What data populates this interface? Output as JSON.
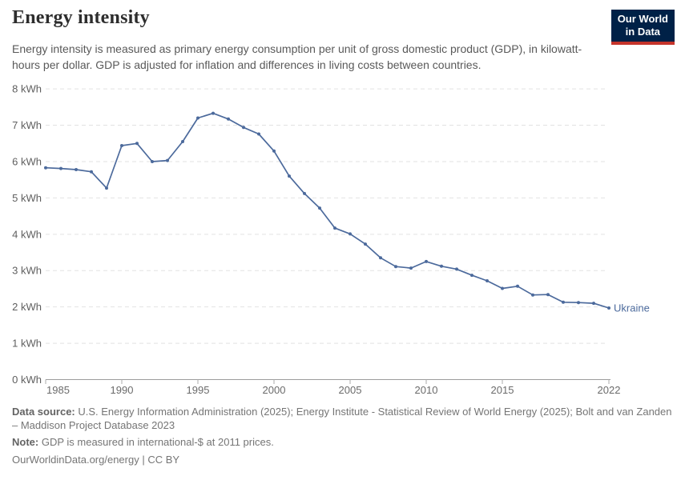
{
  "header": {
    "title": "Energy intensity",
    "subtitle": "Energy intensity is measured as primary energy consumption per unit of gross domestic product (GDP), in kilowatt-hours per dollar. GDP is adjusted for inflation and differences in living costs between countries.",
    "logo": {
      "line1": "Our World",
      "line2": "in Data"
    }
  },
  "colors": {
    "line": "#4C6A9C",
    "logo_bg": "#002147",
    "logo_stripe": "#C5342B",
    "gridline": "#e2e2e2",
    "axis": "#9c9c9c",
    "tick_label": "#6b6b6b"
  },
  "chart_data": {
    "type": "line",
    "title": "Energy intensity",
    "unit": "kWh",
    "x": [
      1985,
      1986,
      1987,
      1988,
      1989,
      1990,
      1991,
      1992,
      1993,
      1994,
      1995,
      1996,
      1997,
      1998,
      1999,
      2000,
      2001,
      2002,
      2003,
      2004,
      2005,
      2006,
      2007,
      2008,
      2009,
      2010,
      2011,
      2012,
      2013,
      2014,
      2015,
      2016,
      2017,
      2018,
      2019,
      2020,
      2021,
      2022
    ],
    "series": [
      {
        "name": "Ukraine",
        "color": "#4C6A9C",
        "values": [
          5.83,
          5.81,
          5.78,
          5.72,
          5.27,
          6.44,
          6.5,
          6.0,
          6.03,
          6.55,
          7.2,
          7.33,
          7.17,
          6.94,
          6.76,
          6.29,
          5.6,
          5.12,
          4.72,
          4.17,
          4.01,
          3.73,
          3.35,
          3.11,
          3.07,
          3.25,
          3.12,
          3.04,
          2.87,
          2.72,
          2.51,
          2.57,
          2.33,
          2.34,
          2.13,
          2.12,
          2.1,
          1.97
        ]
      }
    ],
    "x_tick_labels": [
      "1985",
      "1990",
      "1995",
      "2000",
      "2005",
      "2010",
      "2015",
      "2022"
    ],
    "y_ticks": [
      0,
      1,
      2,
      3,
      4,
      5,
      6,
      7,
      8
    ],
    "y_tick_suffix": " kWh",
    "xlim": [
      1985,
      2022
    ],
    "ylim": [
      0,
      8
    ],
    "grid": "horizontal-dashed",
    "legend_position": "end-of-line",
    "end_label": "Ukraine"
  },
  "footer": {
    "source_label": "Data source:",
    "source_text": " U.S. Energy Information Administration (2025); Energy Institute - Statistical Review of World Energy (2025); Bolt and van Zanden – Maddison Project Database 2023",
    "note_label": "Note:",
    "note_text": " GDP is measured in international-$ at 2011 prices.",
    "url_text": "OurWorldinData.org/energy",
    "license_text": " | CC BY"
  }
}
